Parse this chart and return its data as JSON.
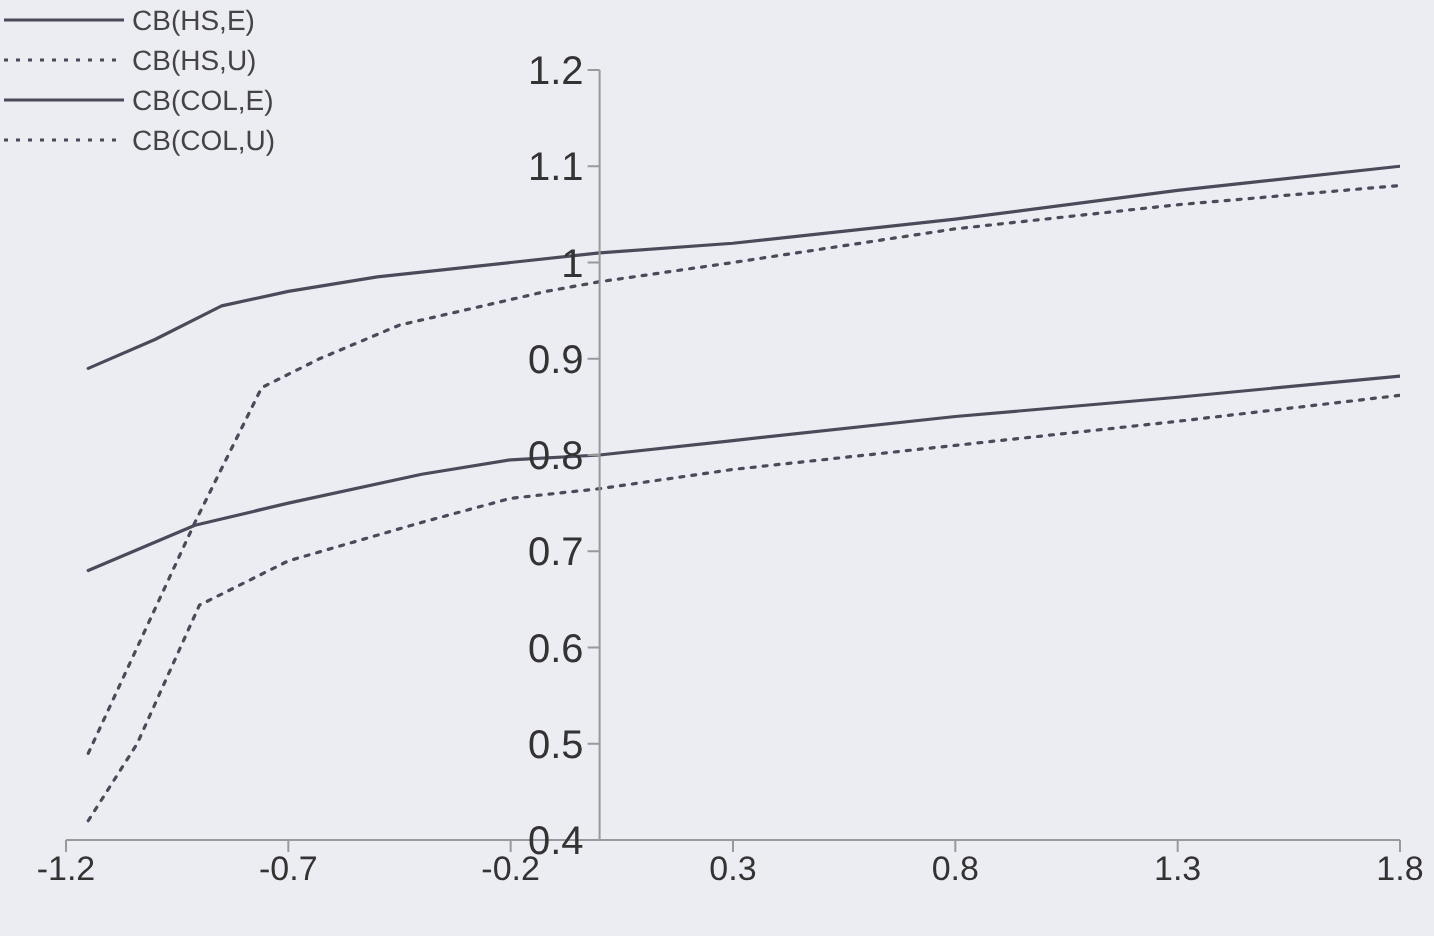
{
  "chart_data": {
    "type": "line",
    "xlim": [
      -1.2,
      1.8
    ],
    "xticks": [
      -1.2,
      -0.7,
      -0.2,
      0.3,
      0.8,
      1.3,
      1.8
    ],
    "ylim": [
      0.4,
      1.2
    ],
    "yticks": [
      0.4,
      0.5,
      0.6,
      0.7,
      0.8,
      0.9,
      1,
      1.1,
      1.2
    ],
    "legend": "top left",
    "grid": false,
    "marker": "none",
    "series": [
      {
        "name": "CB(HS,E)",
        "color": "#4a4a5a",
        "line_style": "solid",
        "x": [
          -1.15,
          -1.0,
          -0.85,
          -0.7,
          -0.5,
          -0.2,
          0,
          0.3,
          0.8,
          1.3,
          1.8
        ],
        "values": [
          0.89,
          0.92,
          0.955,
          0.97,
          0.985,
          1.0,
          1.01,
          1.02,
          1.045,
          1.075,
          1.1
        ]
      },
      {
        "name": "CB(HS,U)",
        "color": "#4a4a5a",
        "line_style": "dotted",
        "x": [
          -1.15,
          -1.05,
          -0.91,
          -0.76,
          -0.63,
          -0.45,
          -0.12,
          0,
          0.3,
          0.8,
          1.3,
          1.8
        ],
        "values": [
          0.49,
          0.59,
          0.73,
          0.87,
          0.9,
          0.935,
          0.97,
          0.98,
          1.0,
          1.035,
          1.06,
          1.08
        ]
      },
      {
        "name": "CB(COL,E)",
        "color": "#4a4a5a",
        "line_style": "solid",
        "x": [
          -1.15,
          -0.91,
          -0.7,
          -0.4,
          -0.2,
          0,
          0.3,
          0.8,
          1.3,
          1.8
        ],
        "values": [
          0.68,
          0.727,
          0.75,
          0.78,
          0.795,
          0.8,
          0.815,
          0.84,
          0.86,
          0.882
        ]
      },
      {
        "name": "CB(COL,U)",
        "color": "#4a4a5a",
        "line_style": "dotted",
        "x": [
          -1.15,
          -1.04,
          -0.9,
          -0.7,
          -0.4,
          -0.2,
          0,
          0.3,
          0.8,
          1.3,
          1.8
        ],
        "values": [
          0.42,
          0.5,
          0.644,
          0.69,
          0.73,
          0.755,
          0.765,
          0.785,
          0.81,
          0.835,
          0.862
        ]
      }
    ]
  }
}
